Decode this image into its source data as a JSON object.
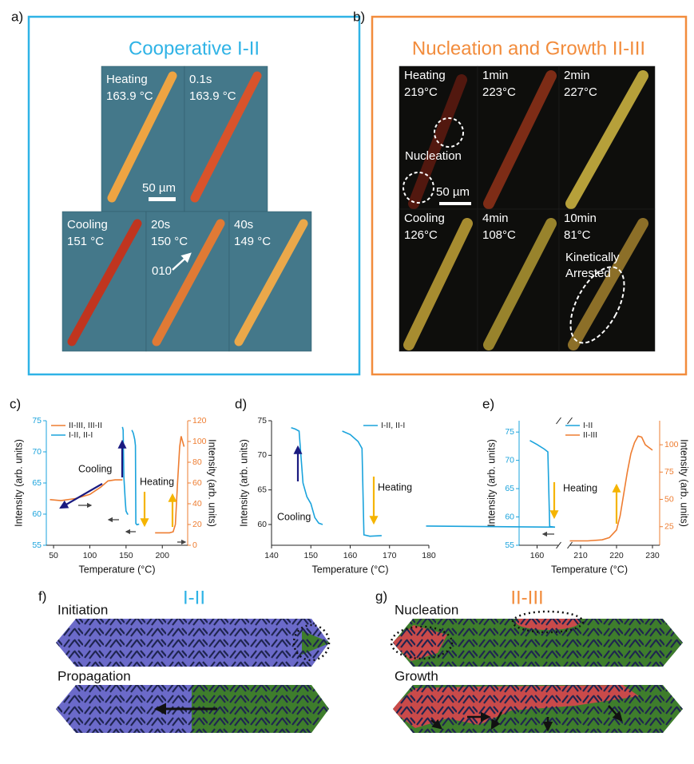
{
  "figure": {
    "panel_a": {
      "label": "a)",
      "title": "Cooperative I-II",
      "tiles": [
        {
          "lines": [
            "Heating",
            "163.9 °C"
          ],
          "color": "#f2b31b"
        },
        {
          "lines": [
            "0.1s",
            "163.9 °C"
          ]
        },
        {
          "lines": [
            "Cooling",
            "151 °C"
          ],
          "color": "#1d2a8c"
        },
        {
          "lines": [
            "20s",
            "150 °C"
          ]
        },
        {
          "lines": [
            "40s",
            "149 °C"
          ]
        }
      ],
      "scale_bar": "50 µm",
      "direction": "010"
    },
    "panel_b": {
      "label": "b)",
      "title": "Nucleation and Growth II-III",
      "tiles": [
        {
          "lines": [
            "Heating",
            "219°C"
          ],
          "color": "#f2b31b"
        },
        {
          "lines": [
            "1min",
            "223°C"
          ]
        },
        {
          "lines": [
            "2min",
            "227°C"
          ]
        },
        {
          "lines": [
            "Cooling",
            "126°C"
          ],
          "color": "#1d2a8c"
        },
        {
          "lines": [
            "4min",
            "108°C"
          ]
        },
        {
          "lines": [
            "10min",
            "81°C"
          ]
        }
      ],
      "scale_bar": "50 µm",
      "annotations": [
        "Nucleation",
        "Kinetically",
        "Arrested"
      ]
    },
    "panel_f": {
      "label": "f)",
      "title": "I-II",
      "steps": [
        "Initiation",
        "Propagation"
      ]
    },
    "panel_g": {
      "label": "g)",
      "title": "II-III",
      "steps": [
        "Nucleation",
        "Growth"
      ]
    }
  },
  "chart_data": [
    {
      "type": "line",
      "label": "c)",
      "xlabel": "Temperature (°C)",
      "ylabel": "Intensity (arb. units)",
      "y2label": "Intensity (arb. units)",
      "xlim": [
        40,
        235
      ],
      "xticks": [
        50,
        100,
        150,
        200
      ],
      "ylim": [
        55,
        75
      ],
      "yticks": [
        55,
        60,
        65,
        70,
        75
      ],
      "y2lim": [
        0,
        120
      ],
      "y2ticks": [
        0,
        20,
        40,
        60,
        80,
        100,
        120
      ],
      "legend": "upper left",
      "annotations": [
        "Cooling",
        "Heating"
      ],
      "series": [
        {
          "name": "II-III, III-II",
          "color": "#ee7d31",
          "axis": "y2",
          "x": [
            45,
            60,
            80,
            100,
            115,
            125,
            135,
            145,
            170,
            190,
            200,
            210,
            215,
            218,
            221,
            224,
            226,
            230
          ],
          "values": [
            44,
            43,
            45,
            49,
            56,
            62,
            63,
            63,
            null,
            12,
            12,
            12,
            13,
            20,
            60,
            95,
            105,
            95
          ]
        },
        {
          "name": "I-II, II-I",
          "color": "#1aa3dc",
          "x": [
            145,
            146,
            147,
            148,
            149,
            150,
            152,
            153,
            156,
            158,
            160,
            162,
            163,
            163.5,
            165,
            168
          ],
          "values": [
            74,
            73.5,
            66,
            64,
            62,
            60.5,
            60,
            60,
            null,
            73.5,
            73,
            72,
            71,
            58.5,
            58.3,
            58.4
          ]
        }
      ]
    },
    {
      "type": "line",
      "label": "d)",
      "xlabel": "Temperature (°C)",
      "ylabel": "Intensity (arb. units)",
      "xlim": [
        140,
        180
      ],
      "xticks": [
        140,
        150,
        160,
        170,
        180
      ],
      "ylim": [
        57,
        75
      ],
      "yticks": [
        60,
        65,
        70,
        75
      ],
      "legend": "upper right",
      "annotations": [
        "Cooling",
        "Heating"
      ],
      "series": [
        {
          "name": "I-II, II-I",
          "color": "#1aa3dc",
          "x": [
            145,
            146,
            147,
            148,
            149,
            150,
            151,
            152,
            153,
            156,
            158,
            160,
            162,
            163,
            163.5,
            165,
            168
          ],
          "values": [
            74,
            73.8,
            73.5,
            66,
            64,
            63,
            61,
            60.2,
            60,
            null,
            73.5,
            73,
            72,
            71,
            58.5,
            58.3,
            58.4
          ]
        }
      ]
    },
    {
      "type": "line",
      "label": "e)",
      "xlabel": "Temperature (°C)",
      "ylabel": "Intensity (arb. units)",
      "y2label": "Intensity (arb. units)",
      "xlim": [
        155,
        232
      ],
      "xbreak": [
        166,
        207
      ],
      "xticks": [
        160,
        210,
        220,
        230
      ],
      "ylim": [
        55,
        77
      ],
      "yticks": [
        55,
        60,
        65,
        70,
        75
      ],
      "y2lim": [
        8,
        122
      ],
      "y2ticks": [
        25,
        50,
        75,
        100
      ],
      "legend": "upper center",
      "annotations": [
        "Heating"
      ],
      "series": [
        {
          "name": "I-II",
          "color": "#1aa3dc",
          "x": [
            158,
            160,
            162,
            163,
            163.5,
            165,
            167
          ],
          "values": [
            73.5,
            72.8,
            72,
            71.5,
            58.3,
            58.2,
            58.4
          ]
        },
        {
          "name": "II-III",
          "color": "#ee7d31",
          "axis": "y2",
          "x": [
            207,
            212,
            216,
            218,
            220,
            221,
            222,
            223,
            224,
            225,
            226,
            227,
            228,
            230
          ],
          "values": [
            12,
            12,
            13,
            15,
            22,
            35,
            55,
            75,
            92,
            102,
            108,
            107,
            100,
            95
          ]
        }
      ]
    }
  ]
}
